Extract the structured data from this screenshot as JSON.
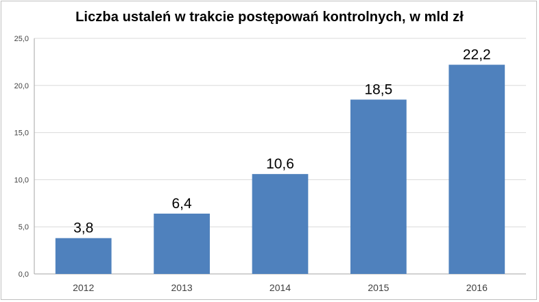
{
  "chart_data": {
    "type": "bar",
    "title": "Liczba ustaleń w trakcie postępowań kontrolnych, w mld zł",
    "categories": [
      "2012",
      "2013",
      "2014",
      "2015",
      "2016"
    ],
    "values": [
      3.8,
      6.4,
      10.6,
      18.5,
      22.2
    ],
    "data_labels": [
      "3,8",
      "6,4",
      "10,6",
      "18,5",
      "22,2"
    ],
    "ylim": [
      0,
      25
    ],
    "yticks": [
      0,
      5,
      10,
      15,
      20,
      25
    ],
    "ytick_labels": [
      "0,0",
      "5,0",
      "10,0",
      "15,0",
      "20,0",
      "25,0"
    ],
    "xlabel": "",
    "ylabel": "",
    "grid": true,
    "legend": "none",
    "bar_color": "#4f81bd",
    "grid_color": "#d9d9d9"
  }
}
